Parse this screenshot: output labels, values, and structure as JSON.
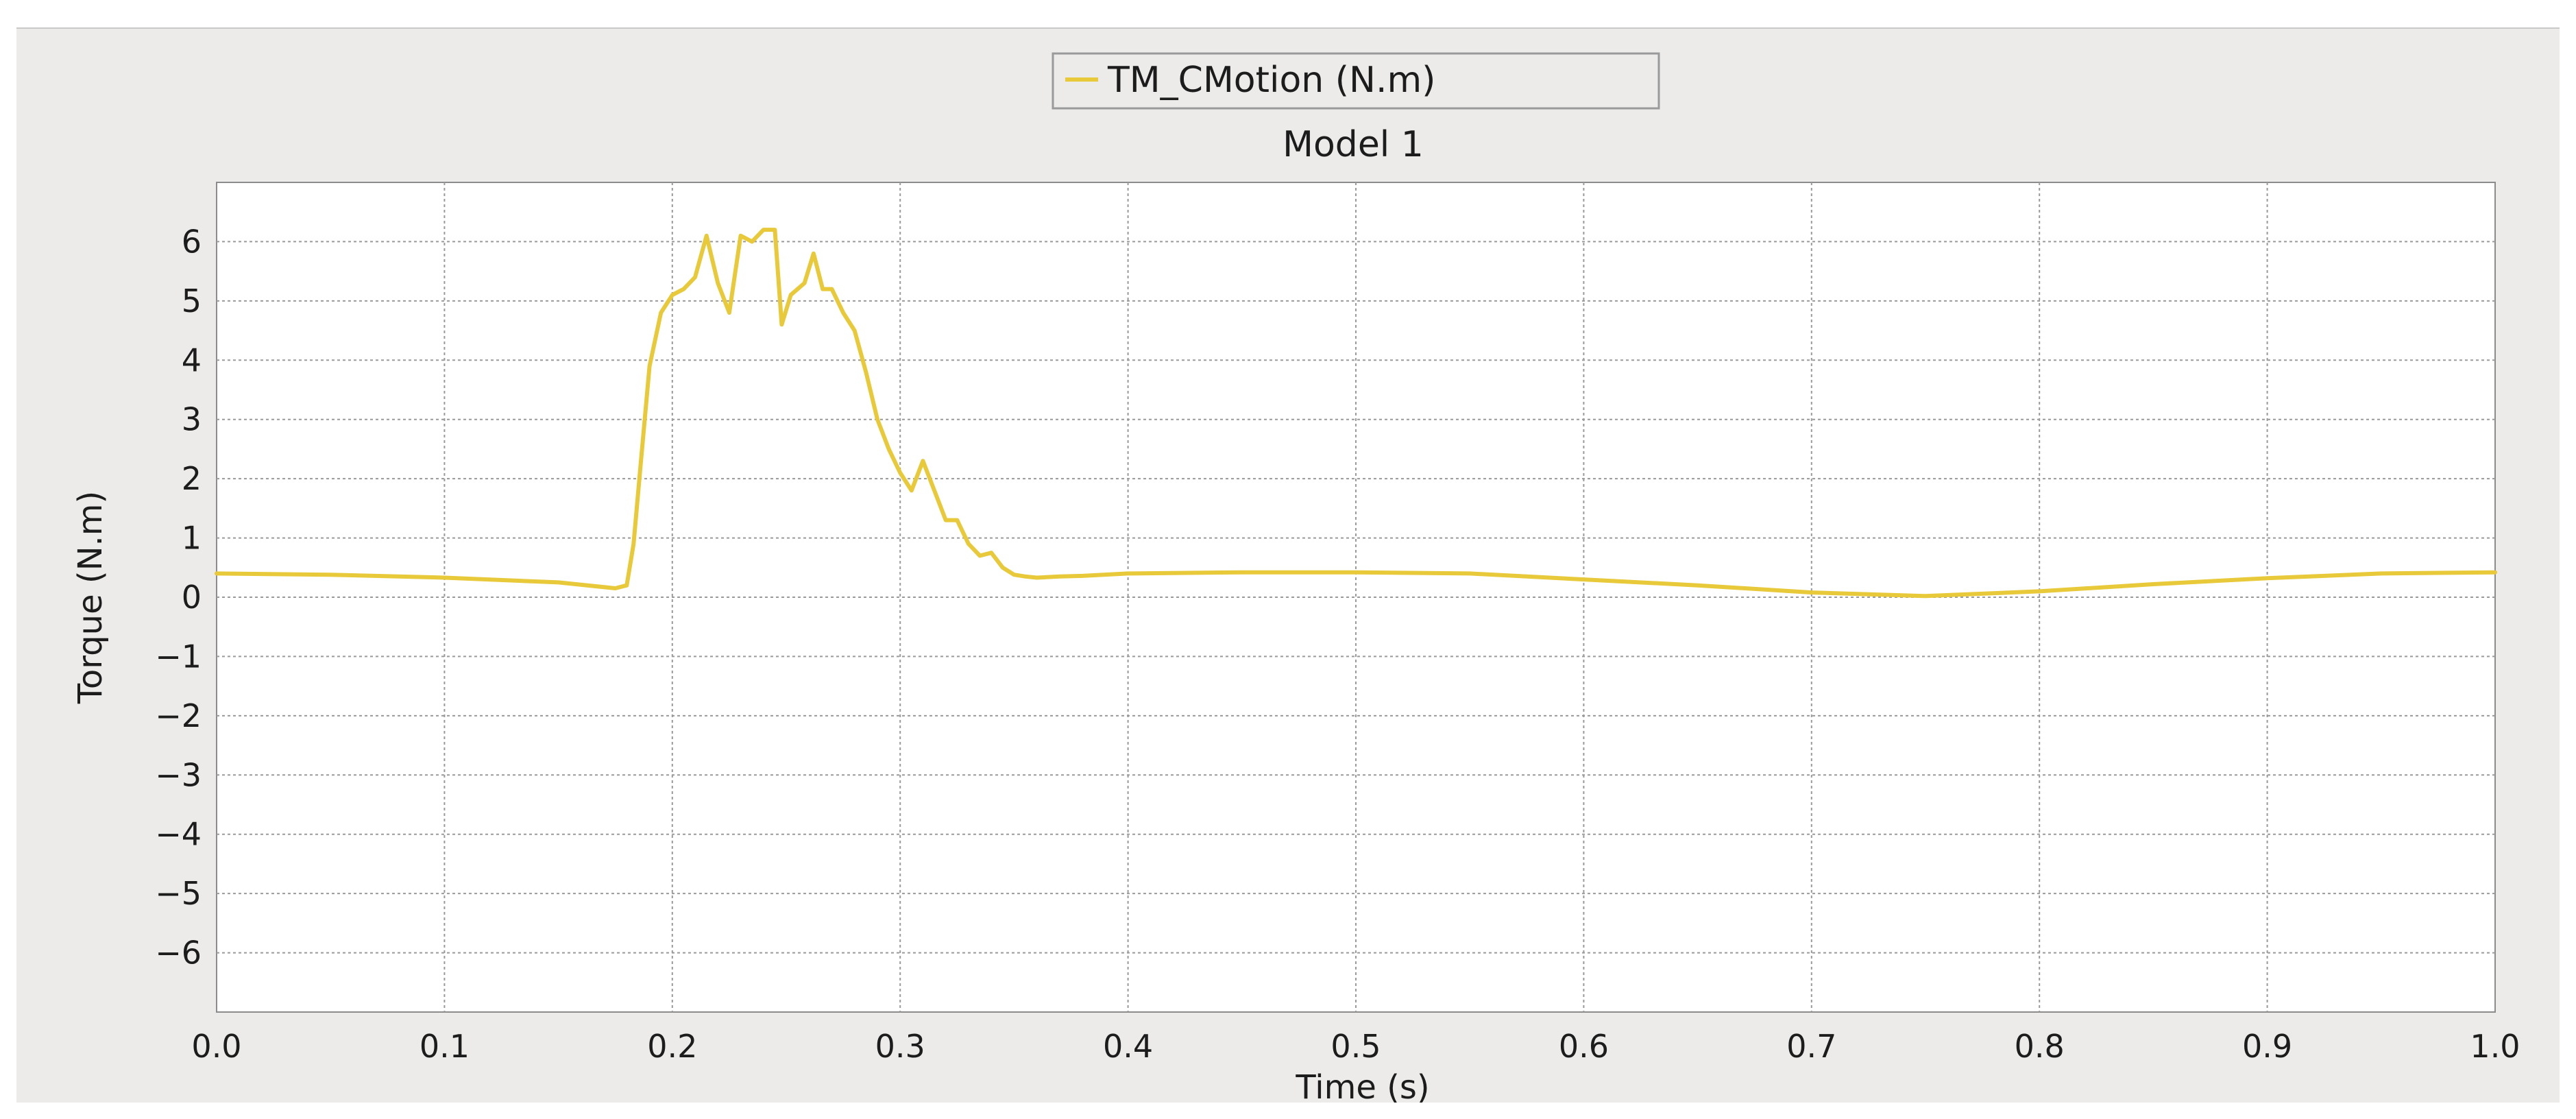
{
  "chart_data": {
    "type": "line",
    "title": "Model 1",
    "xlabel": "Time (s)",
    "ylabel": "Torque (N.m)",
    "xlim": [
      0.0,
      1.0
    ],
    "ylim": [
      -7,
      7
    ],
    "x_ticks": [
      0.0,
      0.1,
      0.2,
      0.3,
      0.4,
      0.5,
      0.6,
      0.7,
      0.8,
      0.9,
      1.0
    ],
    "x_tick_labels": [
      "0.0",
      "0.1",
      "0.2",
      "0.3",
      "0.4",
      "0.5",
      "0.6",
      "0.7",
      "0.8",
      "0.9",
      "1.0"
    ],
    "y_ticks": [
      6,
      5,
      4,
      3,
      2,
      1,
      0,
      -1,
      -2,
      -3,
      -4,
      -5,
      -6
    ],
    "y_tick_labels": [
      "6",
      "5",
      "4",
      "3",
      "2",
      "1",
      "0",
      "−1",
      "−2",
      "−3",
      "−4",
      "−5",
      "−6"
    ],
    "grid": true,
    "legend_position": "top-center",
    "colors": {
      "series": "#e8c93a",
      "plot_bg": "#ffffff",
      "panel_bg": "#ecebe9",
      "grid": "#9a9a9a"
    },
    "series": [
      {
        "name": "TM_CMotion (N.m)",
        "x": [
          0.0,
          0.05,
          0.1,
          0.15,
          0.175,
          0.18,
          0.183,
          0.186,
          0.19,
          0.195,
          0.2,
          0.205,
          0.21,
          0.215,
          0.22,
          0.225,
          0.23,
          0.235,
          0.24,
          0.245,
          0.248,
          0.252,
          0.258,
          0.262,
          0.266,
          0.27,
          0.275,
          0.28,
          0.285,
          0.29,
          0.295,
          0.3,
          0.305,
          0.31,
          0.315,
          0.32,
          0.325,
          0.33,
          0.335,
          0.34,
          0.345,
          0.35,
          0.355,
          0.36,
          0.37,
          0.38,
          0.4,
          0.45,
          0.5,
          0.55,
          0.6,
          0.65,
          0.7,
          0.75,
          0.8,
          0.85,
          0.9,
          0.95,
          1.0
        ],
        "y": [
          0.4,
          0.38,
          0.33,
          0.25,
          0.15,
          0.2,
          0.9,
          2.2,
          3.9,
          4.8,
          5.1,
          5.2,
          5.4,
          6.1,
          5.3,
          4.8,
          6.1,
          6.0,
          6.2,
          6.2,
          4.6,
          5.1,
          5.3,
          5.8,
          5.2,
          5.2,
          4.8,
          4.5,
          3.8,
          3.0,
          2.5,
          2.1,
          1.8,
          2.3,
          1.8,
          1.3,
          1.3,
          0.9,
          0.7,
          0.75,
          0.5,
          0.38,
          0.35,
          0.33,
          0.35,
          0.36,
          0.4,
          0.42,
          0.42,
          0.4,
          0.3,
          0.2,
          0.08,
          0.02,
          0.1,
          0.22,
          0.32,
          0.4,
          0.42
        ]
      }
    ]
  }
}
